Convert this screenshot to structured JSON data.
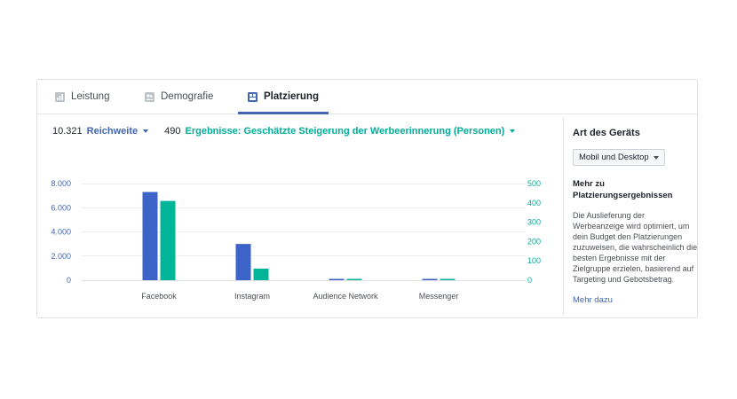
{
  "tabs": [
    {
      "label": "Leistung",
      "icon": "bar-chart-icon",
      "active": false
    },
    {
      "label": "Demografie",
      "icon": "people-icon",
      "active": false
    },
    {
      "label": "Platzierung",
      "icon": "placement-icon",
      "active": true
    }
  ],
  "metrics": {
    "primary_value": "10.321",
    "primary_label": "Reichweite",
    "secondary_value": "490",
    "secondary_label": "Ergebnisse: Geschätzte Steigerung der Werbeerinnerung (Personen)"
  },
  "colors": {
    "blue": "#4267b2",
    "teal": "#00ad99"
  },
  "chart_data": {
    "type": "bar",
    "categories": [
      "Facebook",
      "Instagram",
      "Audience Network",
      "Messenger"
    ],
    "series": [
      {
        "axis": "left",
        "color": "#3b63c8",
        "values": [
          7300,
          3000,
          80,
          80
        ]
      },
      {
        "axis": "right",
        "color": "#00b59a",
        "values": [
          410,
          60,
          3,
          3
        ]
      }
    ],
    "y_left": {
      "ticks": [
        "0",
        "2.000",
        "4.000",
        "6.000",
        "8.000"
      ],
      "max": 8000
    },
    "y_right": {
      "ticks": [
        "0",
        "100",
        "200",
        "300",
        "400",
        "500"
      ],
      "max": 500
    },
    "grid": true
  },
  "side": {
    "title": "Art des Geräts",
    "select_value": "Mobil und Desktop",
    "subtitle": "Mehr zu Platzierungsergebnissen",
    "description": "Die Auslieferung der Werbeanzeige wird optimiert, um dein Budget den Platzierungen zuzuweisen, die wahrscheinlich die besten Ergebnisse mit der Zielgruppe erzielen, basierend auf Targeting und Gebotsbetrag.",
    "link": "Mehr dazu"
  }
}
